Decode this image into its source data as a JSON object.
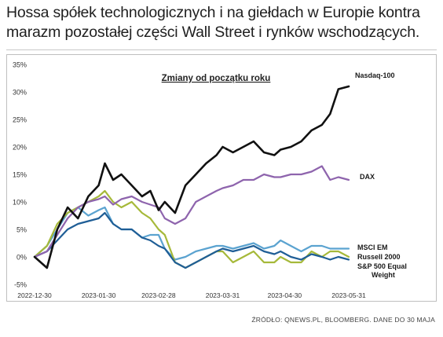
{
  "headline": {
    "line1": "Hossa spółek technologicznych i na giełdach w Europie kontra",
    "line2": "marazm pozostałej części Wall Street i rynków wschodzących."
  },
  "source": "ŹRÓDŁO: QNEWS.PL, BLOOMBERG. DANE DO 30 MAJA",
  "chart_data": {
    "type": "line",
    "title": "Zmiany od początku roku",
    "ylim": [
      -5,
      35
    ],
    "yticks": [
      -5,
      0,
      5,
      10,
      15,
      20,
      25,
      30,
      35
    ],
    "ytick_labels": [
      "-5%",
      "0%",
      "5%",
      "10%",
      "15%",
      "20%",
      "25%",
      "30%",
      "35%"
    ],
    "x_start": "2022-12-30",
    "x_end": "2023-05-31",
    "xticks": [
      "2022-12-30",
      "2023-01-30",
      "2023-02-28",
      "2023-03-31",
      "2023-04-30",
      "2023-05-31"
    ],
    "grid": false,
    "legend": "direct-labels-right",
    "series": [
      {
        "name": "Nasdaq-100",
        "color": "#111111",
        "dates": [
          "2022-12-30",
          "2023-01-05",
          "2023-01-10",
          "2023-01-15",
          "2023-01-20",
          "2023-01-25",
          "2023-01-30",
          "2023-02-02",
          "2023-02-06",
          "2023-02-10",
          "2023-02-15",
          "2023-02-20",
          "2023-02-24",
          "2023-02-28",
          "2023-03-03",
          "2023-03-08",
          "2023-03-13",
          "2023-03-18",
          "2023-03-23",
          "2023-03-28",
          "2023-03-31",
          "2023-04-05",
          "2023-04-10",
          "2023-04-15",
          "2023-04-20",
          "2023-04-25",
          "2023-04-28",
          "2023-05-03",
          "2023-05-08",
          "2023-05-13",
          "2023-05-18",
          "2023-05-22",
          "2023-05-26",
          "2023-05-31"
        ],
        "values": [
          0,
          -2,
          5,
          9,
          7,
          11,
          13,
          17,
          14,
          15,
          13,
          11,
          12,
          8.5,
          10,
          8,
          13,
          15,
          17,
          18.5,
          20,
          19,
          20,
          21,
          19,
          18.5,
          19.5,
          20,
          21,
          23,
          24,
          26,
          30.5,
          31
        ]
      },
      {
        "name": "DAX",
        "color": "#8e64ad",
        "dates": [
          "2022-12-30",
          "2023-01-05",
          "2023-01-10",
          "2023-01-15",
          "2023-01-20",
          "2023-01-25",
          "2023-01-30",
          "2023-02-02",
          "2023-02-06",
          "2023-02-10",
          "2023-02-15",
          "2023-02-20",
          "2023-02-24",
          "2023-02-28",
          "2023-03-03",
          "2023-03-08",
          "2023-03-13",
          "2023-03-18",
          "2023-03-23",
          "2023-03-28",
          "2023-03-31",
          "2023-04-05",
          "2023-04-10",
          "2023-04-15",
          "2023-04-20",
          "2023-04-25",
          "2023-04-28",
          "2023-05-03",
          "2023-05-08",
          "2023-05-13",
          "2023-05-18",
          "2023-05-22",
          "2023-05-26",
          "2023-05-31"
        ],
        "values": [
          0,
          1,
          4,
          7,
          9,
          10,
          10.5,
          11,
          9.5,
          10.5,
          11,
          10,
          9.5,
          9,
          7,
          6,
          7,
          10,
          11,
          12,
          12.5,
          13,
          14,
          14,
          15,
          14.5,
          14.5,
          15,
          15,
          15.5,
          16.5,
          14,
          14.5,
          14
        ]
      },
      {
        "name": "MSCI EM",
        "color": "#5ba3d0",
        "dates": [
          "2022-12-30",
          "2023-01-05",
          "2023-01-10",
          "2023-01-15",
          "2023-01-20",
          "2023-01-25",
          "2023-01-30",
          "2023-02-02",
          "2023-02-06",
          "2023-02-10",
          "2023-02-15",
          "2023-02-20",
          "2023-02-24",
          "2023-02-28",
          "2023-03-03",
          "2023-03-08",
          "2023-03-13",
          "2023-03-18",
          "2023-03-23",
          "2023-03-28",
          "2023-03-31",
          "2023-04-05",
          "2023-04-10",
          "2023-04-15",
          "2023-04-20",
          "2023-04-25",
          "2023-04-28",
          "2023-05-03",
          "2023-05-08",
          "2023-05-13",
          "2023-05-18",
          "2023-05-22",
          "2023-05-26",
          "2023-05-31"
        ],
        "values": [
          0,
          2,
          5,
          8,
          9,
          7.5,
          8.5,
          9,
          6,
          5,
          5,
          3.5,
          4,
          4,
          1.5,
          -0.5,
          0,
          1,
          1.5,
          2,
          2,
          1.5,
          2,
          2.5,
          1.5,
          2,
          3,
          2,
          1,
          2,
          2,
          1.5,
          1.5,
          1.5
        ]
      },
      {
        "name": "Russell 2000",
        "color": "#a6b93a",
        "dates": [
          "2022-12-30",
          "2023-01-05",
          "2023-01-10",
          "2023-01-15",
          "2023-01-20",
          "2023-01-25",
          "2023-01-30",
          "2023-02-02",
          "2023-02-06",
          "2023-02-10",
          "2023-02-15",
          "2023-02-20",
          "2023-02-24",
          "2023-02-28",
          "2023-03-03",
          "2023-03-08",
          "2023-03-13",
          "2023-03-18",
          "2023-03-23",
          "2023-03-28",
          "2023-03-31",
          "2023-04-05",
          "2023-04-10",
          "2023-04-15",
          "2023-04-20",
          "2023-04-25",
          "2023-04-28",
          "2023-05-03",
          "2023-05-08",
          "2023-05-13",
          "2023-05-18",
          "2023-05-22",
          "2023-05-26",
          "2023-05-31"
        ],
        "values": [
          0,
          2,
          6,
          8,
          9,
          10,
          11,
          12,
          10,
          9,
          10,
          8,
          7,
          5,
          4,
          -1,
          -2,
          -1,
          0,
          1,
          1,
          -1,
          0,
          1,
          -1,
          -1,
          0,
          -1,
          -1,
          1,
          0,
          1,
          1,
          0
        ]
      },
      {
        "name": "S&P 500 Equal Weight",
        "color": "#1f5e96",
        "dates": [
          "2022-12-30",
          "2023-01-05",
          "2023-01-10",
          "2023-01-15",
          "2023-01-20",
          "2023-01-25",
          "2023-01-30",
          "2023-02-02",
          "2023-02-06",
          "2023-02-10",
          "2023-02-15",
          "2023-02-20",
          "2023-02-24",
          "2023-02-28",
          "2023-03-03",
          "2023-03-08",
          "2023-03-13",
          "2023-03-18",
          "2023-03-23",
          "2023-03-28",
          "2023-03-31",
          "2023-04-05",
          "2023-04-10",
          "2023-04-15",
          "2023-04-20",
          "2023-04-25",
          "2023-04-28",
          "2023-05-03",
          "2023-05-08",
          "2023-05-13",
          "2023-05-18",
          "2023-05-22",
          "2023-05-26",
          "2023-05-31"
        ],
        "values": [
          0,
          1,
          3,
          5,
          6,
          6.5,
          7,
          8,
          6,
          5,
          5,
          3.5,
          3,
          2,
          1.5,
          -1,
          -2,
          -1,
          0,
          1,
          1.5,
          1,
          1.5,
          2,
          1,
          0.5,
          1,
          0,
          -0.5,
          0.5,
          0,
          -0.5,
          0,
          -0.5
        ]
      }
    ]
  }
}
